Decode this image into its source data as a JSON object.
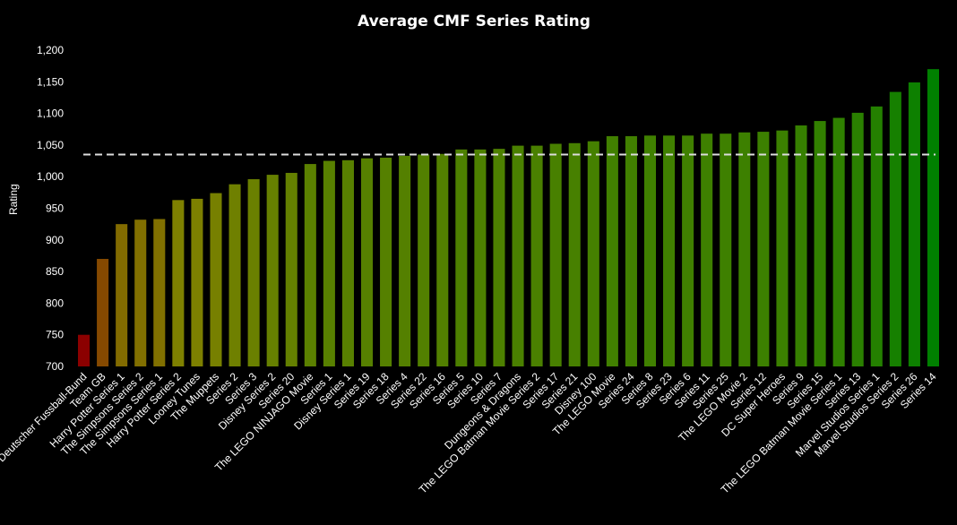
{
  "chart_data": {
    "type": "bar",
    "title": "Average CMF Series Rating",
    "xlabel": "",
    "ylabel": "Rating",
    "ylim": [
      700,
      1200
    ],
    "yticks": [
      700,
      750,
      800,
      850,
      900,
      950,
      1000,
      1050,
      1100,
      1150,
      1200
    ],
    "ytick_labels": [
      "700",
      "750",
      "800",
      "850",
      "900",
      "950",
      "1,000",
      "1,050",
      "1,100",
      "1,150",
      "1,200"
    ],
    "average_line": 1035,
    "average_line_color": "#dddddd",
    "color_low": "#8b0000",
    "color_mid": "#808000",
    "color_high": "#008000",
    "categories": [
      "Deutscher Fussball-Bund",
      "Team GB",
      "Harry Potter Series 1",
      "The Simpsons Series 2",
      "The Simpsons Series 1",
      "Harry Potter Series 2",
      "Looney Tunes",
      "The Muppets",
      "Series 2",
      "Series 3",
      "Disney Series 2",
      "Series 20",
      "The LEGO NINJAGO Movie",
      "Series 1",
      "Disney Series 1",
      "Series 19",
      "Series 18",
      "Series 4",
      "Series 22",
      "Series 16",
      "Series 5",
      "Series 10",
      "Series 7",
      "Dungeons & Dragons",
      "The LEGO Batman Movie Series 2",
      "Series 17",
      "Series 21",
      "Disney 100",
      "The LEGO Movie",
      "Series 24",
      "Series 8",
      "Series 23",
      "Series 6",
      "Series 11",
      "Series 25",
      "The LEGO Movie 2",
      "Series 12",
      "DC Super Heroes",
      "Series 9",
      "Series 15",
      "The LEGO Batman Movie Series 1",
      "Series 13",
      "Marvel Studios Series 1",
      "Marvel Studios Series 2",
      "Series 26",
      "Series 14"
    ],
    "values": [
      750,
      870,
      925,
      932,
      933,
      963,
      965,
      974,
      988,
      996,
      1003,
      1006,
      1020,
      1025,
      1026,
      1029,
      1030,
      1033,
      1035,
      1036,
      1043,
      1043,
      1044,
      1049,
      1049,
      1052,
      1053,
      1056,
      1064,
      1064,
      1065,
      1065,
      1065,
      1068,
      1068,
      1070,
      1071,
      1073,
      1081,
      1088,
      1093,
      1101,
      1111,
      1134,
      1149,
      1170
    ],
    "grid": false,
    "legend": "none"
  }
}
